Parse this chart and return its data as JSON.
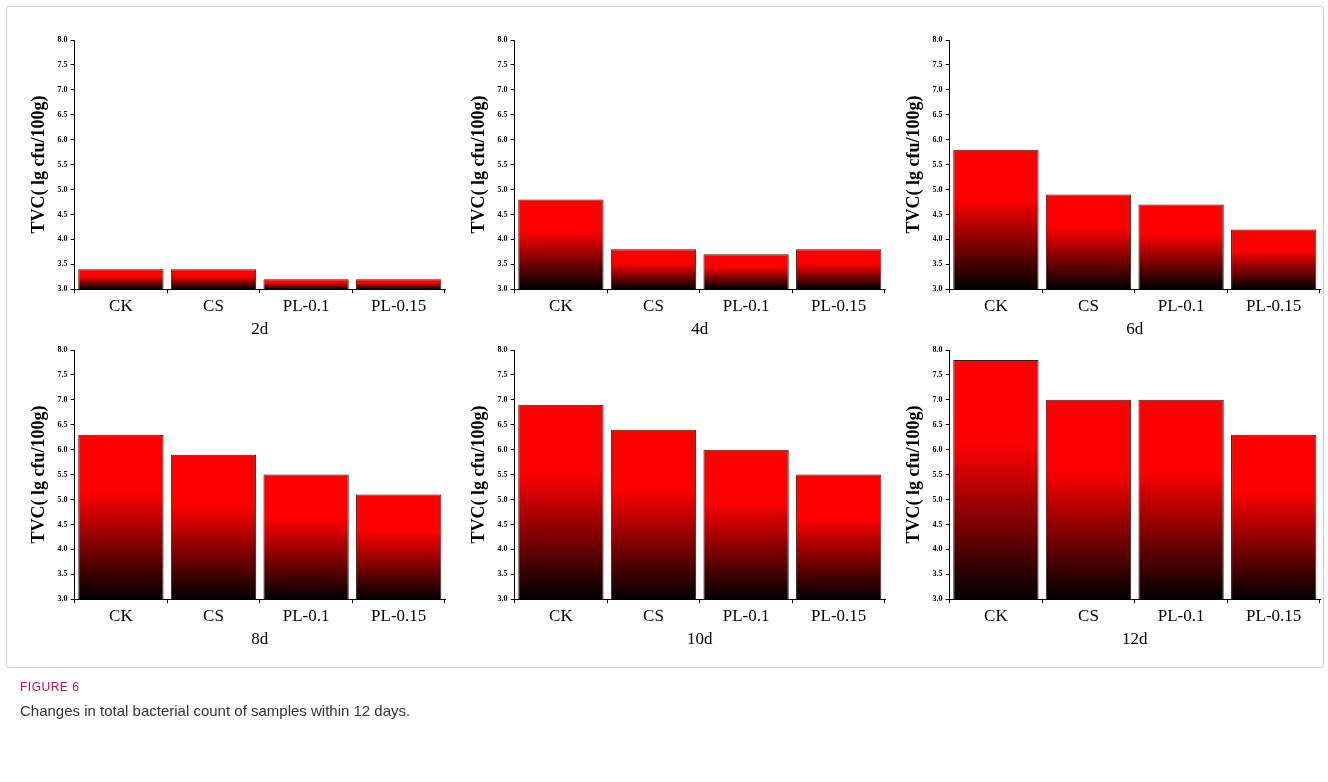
{
  "chart_data": [
    {
      "type": "bar",
      "xlabel": "2d",
      "ylabel": "TVC( lg cfu/100g)",
      "categories": [
        "CK",
        "CS",
        "PL-0.1",
        "PL-0.15"
      ],
      "values": [
        3.4,
        3.4,
        3.2,
        3.2
      ],
      "color": "#ff0000",
      "ylim": [
        3,
        8
      ],
      "yticks": [
        {
          "value": 3,
          "label": "3.0"
        },
        3.5,
        {
          "value": 4,
          "label": "4.0"
        },
        4.5,
        {
          "value": 5,
          "label": "5.0"
        },
        5.5,
        {
          "value": 6,
          "label": "6.0"
        },
        6.5,
        {
          "value": 7,
          "label": "7.0"
        },
        7.5,
        {
          "value": 8,
          "label": "8.0"
        }
      ],
      "grid": false,
      "legend": false
    },
    {
      "type": "bar",
      "xlabel": "4d",
      "ylabel": "TVC( lg cfu/100g)",
      "categories": [
        "CK",
        "CS",
        "PL-0.1",
        "PL-0.15"
      ],
      "values": [
        4.8,
        3.8,
        3.7,
        3.8
      ],
      "color": "#ff0000",
      "ylim": [
        3,
        8
      ],
      "yticks": [
        {
          "value": 3,
          "label": "3.0"
        },
        3.5,
        {
          "value": 4,
          "label": "4.0"
        },
        4.5,
        {
          "value": 5,
          "label": "5.0"
        },
        5.5,
        {
          "value": 6,
          "label": "6.0"
        },
        6.5,
        {
          "value": 7,
          "label": "7.0"
        },
        7.5,
        {
          "value": 8,
          "label": "8.0"
        }
      ],
      "grid": false,
      "legend": false
    },
    {
      "type": "bar",
      "xlabel": "6d",
      "ylabel": "TVC( lg cfu/100g)",
      "categories": [
        "CK",
        "CS",
        "PL-0.1",
        "PL-0.15"
      ],
      "values": [
        5.8,
        4.9,
        4.7,
        4.2
      ],
      "color": "#ff0000",
      "ylim": [
        3,
        8
      ],
      "yticks": [
        {
          "value": 3,
          "label": "3.0"
        },
        3.5,
        {
          "value": 4,
          "label": "4.0"
        },
        4.5,
        {
          "value": 5,
          "label": "5.0"
        },
        5.5,
        {
          "value": 6,
          "label": "6.0"
        },
        6.5,
        {
          "value": 7,
          "label": "7.0"
        },
        7.5,
        {
          "value": 8,
          "label": "8.0"
        }
      ],
      "grid": false,
      "legend": false
    },
    {
      "type": "bar",
      "xlabel": "8d",
      "ylabel": "TVC( lg cfu/100g)",
      "categories": [
        "CK",
        "CS",
        "PL-0.1",
        "PL-0.15"
      ],
      "values": [
        6.3,
        5.9,
        5.5,
        5.1
      ],
      "color": "#ff0000",
      "ylim": [
        3,
        8
      ],
      "yticks": [
        {
          "value": 3,
          "label": "3.0"
        },
        3.5,
        {
          "value": 4,
          "label": "4.0"
        },
        4.5,
        {
          "value": 5,
          "label": "5.0"
        },
        5.5,
        {
          "value": 6,
          "label": "6.0"
        },
        6.5,
        {
          "value": 7,
          "label": "7.0"
        },
        7.5,
        {
          "value": 8,
          "label": "8.0"
        }
      ],
      "grid": false,
      "legend": false
    },
    {
      "type": "bar",
      "xlabel": "10d",
      "ylabel": "TVC( lg cfu/100g)",
      "categories": [
        "CK",
        "CS",
        "PL-0.1",
        "PL-0.15"
      ],
      "values": [
        6.9,
        6.4,
        6.0,
        5.5
      ],
      "color": "#ff0000",
      "ylim": [
        3,
        8
      ],
      "yticks": [
        {
          "value": 3,
          "label": "3.0"
        },
        3.5,
        {
          "value": 4,
          "label": "4.0"
        },
        4.5,
        {
          "value": 5,
          "label": "5.0"
        },
        5.5,
        {
          "value": 6,
          "label": "6.0"
        },
        6.5,
        {
          "value": 7,
          "label": "7.0"
        },
        7.5,
        {
          "value": 8,
          "label": "8.0"
        }
      ],
      "grid": false,
      "legend": false
    },
    {
      "type": "bar",
      "xlabel": "12d",
      "ylabel": "TVC( lg cfu/100g)",
      "categories": [
        "CK",
        "CS",
        "PL-0.1",
        "PL-0.15"
      ],
      "values": [
        7.8,
        7.0,
        7.0,
        6.3
      ],
      "color": "#ff0000",
      "ylim": [
        3,
        8
      ],
      "yticks": [
        {
          "value": 3,
          "label": "3.0"
        },
        3.5,
        {
          "value": 4,
          "label": "4.0"
        },
        4.5,
        {
          "value": 5,
          "label": "5.0"
        },
        5.5,
        {
          "value": 6,
          "label": "6.0"
        },
        6.5,
        {
          "value": 7,
          "label": "7.0"
        },
        7.5,
        {
          "value": 8,
          "label": "8.0"
        }
      ],
      "grid": false,
      "legend": false,
      "annotations": [
        "FIGURE 6",
        "Changes in total bacterial count of samples within 12 days."
      ]
    }
  ]
}
